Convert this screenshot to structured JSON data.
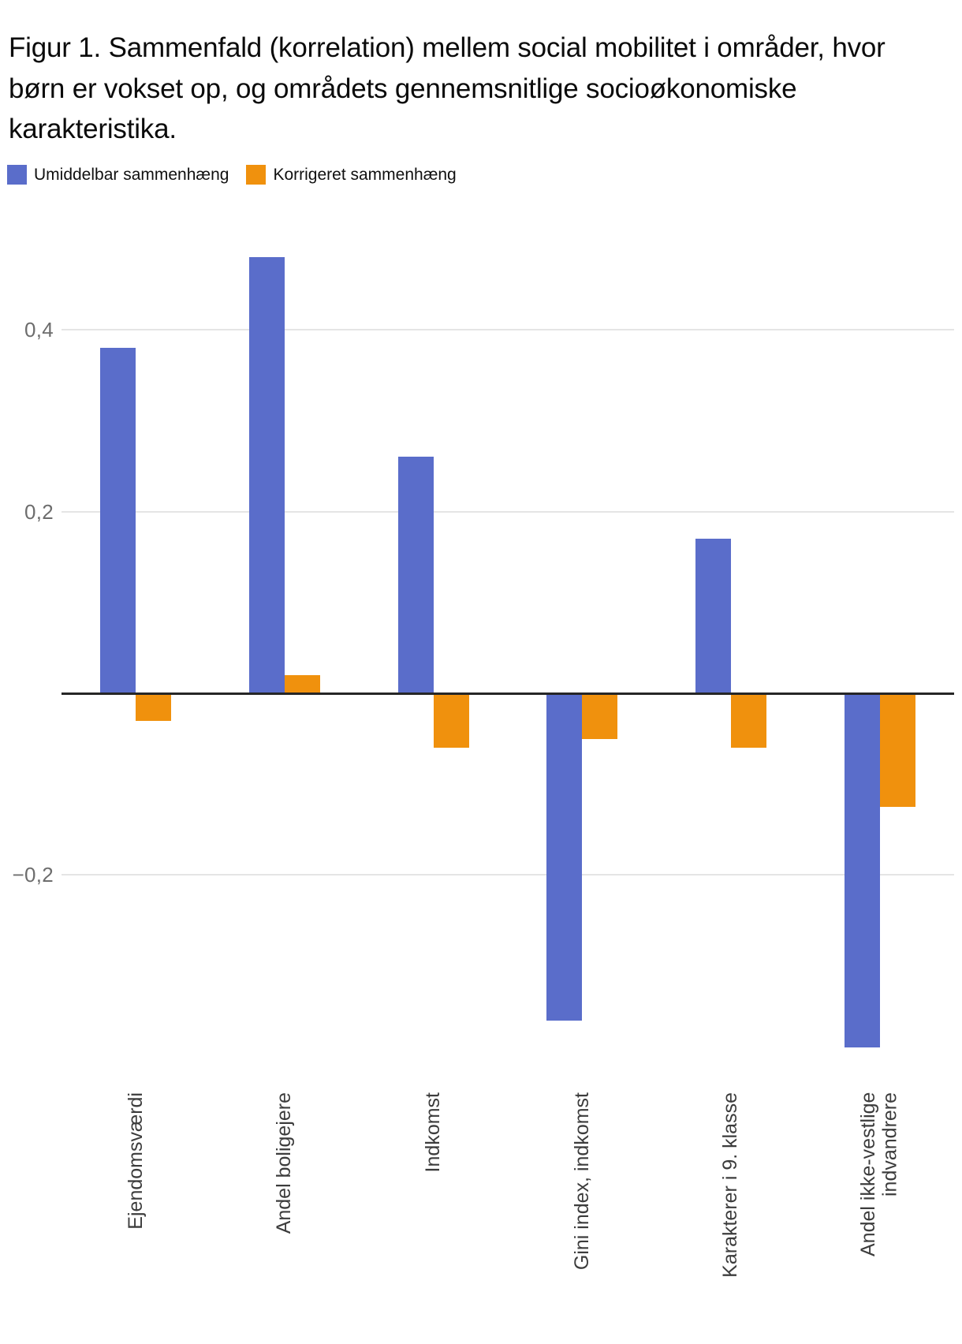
{
  "title": "Figur 1. Sammenfald (korrelation) mellem social mobilitet i områder, hvor børn er vokset op, og områdets gennemsnitlige socioøkonomiske karakteristika.",
  "legend": {
    "items": [
      {
        "label": "Umiddelbar sammenhæng",
        "color": "#5a6dca"
      },
      {
        "label": "Korrigeret sammenhæng",
        "color": "#f0910d"
      }
    ]
  },
  "colors": {
    "series_blue": "#5a6dca",
    "series_orange": "#f0910d",
    "gridline": "#e5e5e5",
    "zero_axis": "#262626",
    "ytick_text": "#6d6d6d",
    "xlabel_text": "#3c3c3c",
    "title_text": "#0b0b0b"
  },
  "chart_data": {
    "type": "bar",
    "title": "Figur 1. Sammenfald (korrelation) mellem social mobilitet i områder, hvor børn er vokset op, og områdets gennemsnitlige socioøkonomiske karakteristika.",
    "categories": [
      "Ejendomsværdi",
      "Andel boligejere",
      "Indkomst",
      "Gini index, indkomst",
      "Karakterer i 9. klasse",
      "Andel ikke-vestlige indvandrere"
    ],
    "series": [
      {
        "name": "Umiddelbar sammenhæng",
        "color": "#5a6dca",
        "values": [
          0.38,
          0.48,
          0.26,
          -0.36,
          0.17,
          -0.39
        ]
      },
      {
        "name": "Korrigeret sammenhæng",
        "color": "#f0910d",
        "values": [
          -0.03,
          0.02,
          -0.06,
          -0.05,
          -0.06,
          -0.125
        ]
      }
    ],
    "xlabel": "",
    "ylabel": "",
    "y_ticks": [
      {
        "value": 0.4,
        "label": "0,4"
      },
      {
        "value": 0.2,
        "label": "0,2"
      },
      {
        "value": -0.2,
        "label": "−0,2"
      }
    ],
    "ylim": [
      -0.435,
      0.53
    ],
    "grid": true,
    "zero_line": true,
    "legend_position": "top"
  }
}
